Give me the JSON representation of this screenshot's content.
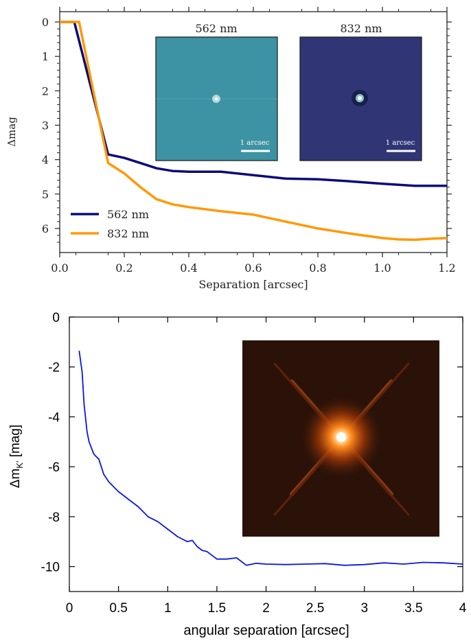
{
  "chart_data": [
    {
      "type": "line",
      "xlabel": "Separation [arcsec]",
      "ylabel": "Δmag",
      "xlim": [
        0,
        1.2
      ],
      "ylim": [
        6.7,
        -0.3
      ],
      "y_inverted": true,
      "x_ticks": [
        "0.0",
        "0.2",
        "0.4",
        "0.6",
        "0.8",
        "1.0",
        "1.2"
      ],
      "y_ticks": [
        "0",
        "1",
        "2",
        "3",
        "4",
        "5",
        "6"
      ],
      "legend": "bottom-left",
      "series": [
        {
          "name": "562 nm",
          "color": "#0b0a7a",
          "x": [
            0.0,
            0.045,
            0.15,
            0.2,
            0.25,
            0.3,
            0.35,
            0.4,
            0.5,
            0.6,
            0.7,
            0.8,
            0.9,
            1.0,
            1.1,
            1.2
          ],
          "y": [
            0.0,
            0.0,
            3.85,
            3.95,
            4.1,
            4.25,
            4.33,
            4.35,
            4.35,
            4.45,
            4.55,
            4.57,
            4.63,
            4.7,
            4.76,
            4.76
          ]
        },
        {
          "name": "832 nm",
          "color": "#ff9900",
          "x": [
            0.0,
            0.06,
            0.15,
            0.2,
            0.25,
            0.3,
            0.35,
            0.4,
            0.5,
            0.6,
            0.7,
            0.8,
            0.9,
            1.0,
            1.05,
            1.1,
            1.15,
            1.2
          ],
          "y": [
            0.0,
            0.0,
            4.1,
            4.4,
            4.8,
            5.15,
            5.3,
            5.38,
            5.5,
            5.6,
            5.8,
            6.0,
            6.15,
            6.28,
            6.32,
            6.33,
            6.3,
            6.28
          ]
        }
      ],
      "insets": [
        {
          "title": "562 nm",
          "scale_label": "1 arcsec",
          "background": "#3d92a3"
        },
        {
          "title": "832 nm",
          "scale_label": "1 arcsec",
          "background": "#2f3575"
        }
      ]
    },
    {
      "type": "line",
      "xlabel": "angular separation [arcsec]",
      "ylabel": "Δm",
      "ylabel_sub": "K′",
      "ylabel_suffix": " [mag]",
      "xlim": [
        0,
        4
      ],
      "ylim": [
        -11,
        0
      ],
      "x_ticks": [
        "0",
        "0.5",
        "1",
        "1.5",
        "2",
        "2.5",
        "3",
        "3.5",
        "4"
      ],
      "y_ticks": [
        "0",
        "-2",
        "-4",
        "-6",
        "-8",
        "-10"
      ],
      "series": [
        {
          "color": "#0a14e6",
          "x": [
            0.1,
            0.13,
            0.15,
            0.18,
            0.2,
            0.25,
            0.3,
            0.35,
            0.4,
            0.5,
            0.6,
            0.7,
            0.8,
            0.9,
            1.0,
            1.1,
            1.2,
            1.25,
            1.3,
            1.35,
            1.4,
            1.5,
            1.6,
            1.7,
            1.8,
            1.9,
            2.0,
            2.2,
            2.4,
            2.6,
            2.8,
            3.0,
            3.2,
            3.4,
            3.6,
            3.8,
            4.0
          ],
          "y": [
            -1.35,
            -2.2,
            -3.5,
            -4.6,
            -5.0,
            -5.5,
            -5.7,
            -6.3,
            -6.6,
            -7.0,
            -7.3,
            -7.6,
            -8.0,
            -8.2,
            -8.5,
            -8.8,
            -9.0,
            -8.95,
            -9.2,
            -9.35,
            -9.4,
            -9.7,
            -9.7,
            -9.65,
            -9.95,
            -9.87,
            -9.9,
            -9.92,
            -9.9,
            -9.88,
            -9.95,
            -9.92,
            -9.85,
            -9.9,
            -9.83,
            -9.85,
            -9.9
          ]
        }
      ],
      "inset": {
        "background": "#2a1208"
      }
    }
  ]
}
